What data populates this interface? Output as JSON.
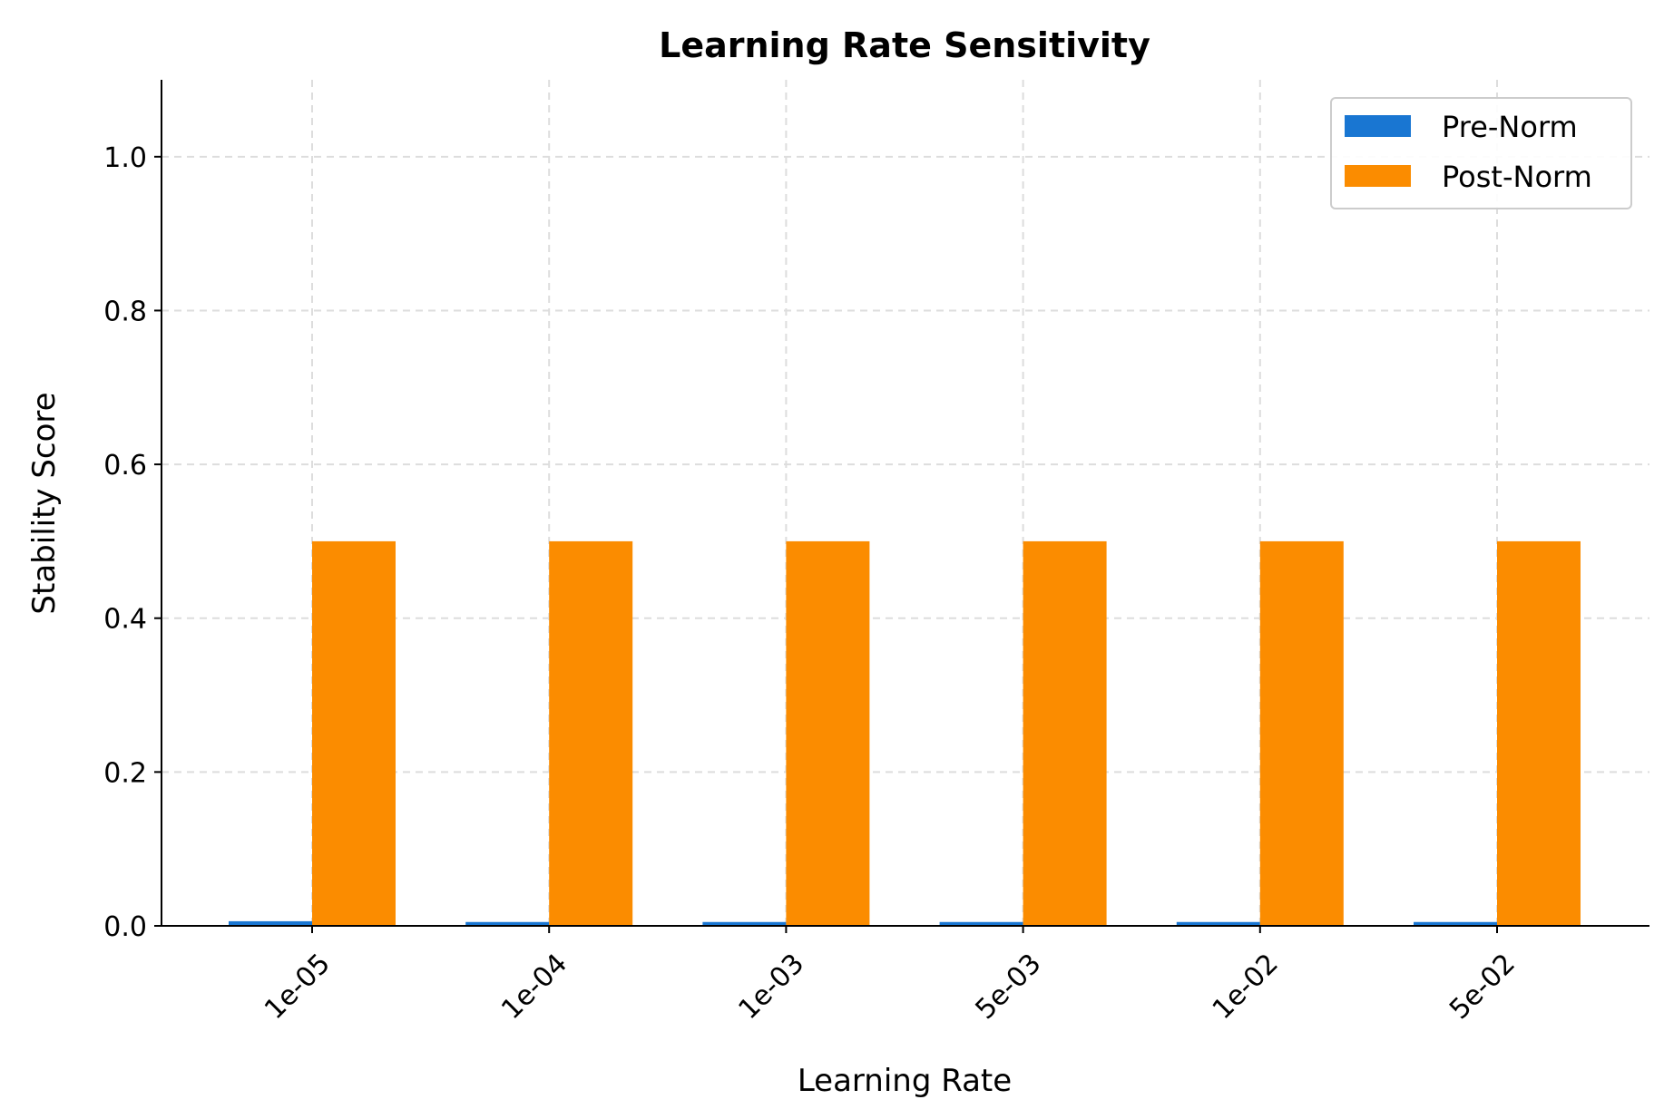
{
  "chart_data": {
    "type": "bar",
    "title": "Learning Rate Sensitivity",
    "xlabel": "Learning Rate",
    "ylabel": "Stability Score",
    "categories": [
      "1e-05",
      "1e-04",
      "1e-03",
      "5e-03",
      "1e-02",
      "5e-02"
    ],
    "series": [
      {
        "name": "Pre-Norm",
        "color": "#1976D2",
        "values": [
          0.006,
          0.005,
          0.005,
          0.005,
          0.005,
          0.005
        ]
      },
      {
        "name": "Post-Norm",
        "color": "#FB8C00",
        "values": [
          0.5,
          0.5,
          0.5,
          0.5,
          0.5,
          0.5
        ]
      }
    ],
    "ylim": [
      0,
      1.1
    ],
    "yticks": [
      "0.0",
      "0.2",
      "0.4",
      "0.6",
      "0.8",
      "1.0"
    ],
    "grid": true,
    "legend": "top-right"
  }
}
